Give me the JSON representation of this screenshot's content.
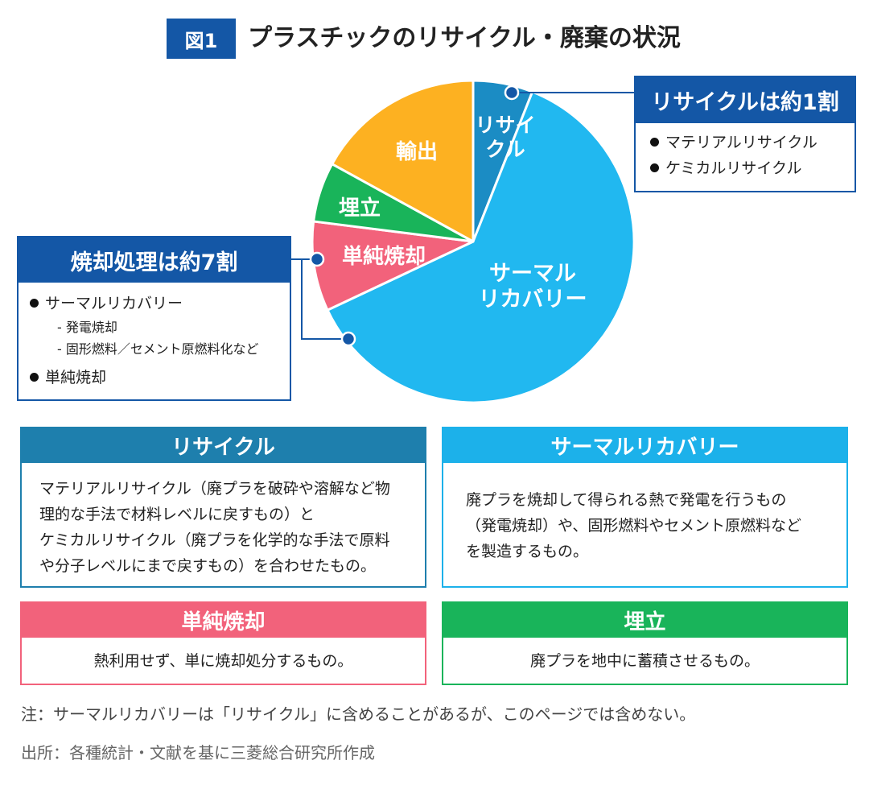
{
  "figure_label": "図1",
  "title": "プラスチックのリサイクル・廃棄の状況",
  "chart_data": {
    "type": "pie",
    "start": "top, clockwise",
    "slices": [
      {
        "label_lines": [
          "リサイ",
          "クル"
        ],
        "value": 6,
        "color": "#1b8cc4",
        "label_color": "#ffffff"
      },
      {
        "label_lines": [
          "サーマル",
          "リカバリー"
        ],
        "value": 62,
        "color": "#21b8f0",
        "label_color": "#ffffff"
      },
      {
        "label_lines": [
          "単純焼却"
        ],
        "value": 9,
        "color": "#f2627b",
        "label_color": "#ffffff"
      },
      {
        "label_lines": [
          "埋立"
        ],
        "value": 6,
        "color": "#19b45a",
        "label_color": "#ffffff"
      },
      {
        "label_lines": [
          "輸出"
        ],
        "value": 17,
        "color": "#fdb121",
        "label_color": "#ffffff"
      }
    ],
    "note": "values estimated from slice angles"
  },
  "callouts": {
    "recycle": {
      "title": "リサイクルは約1割",
      "items": [
        "マテリアルリサイクル",
        "ケミカルリサイクル"
      ]
    },
    "incineration": {
      "title": "焼却処理は約7割",
      "item1": "サーマルリカバリー",
      "sub1": "-  発電焼却",
      "sub2": "-  固形燃料／セメント原燃料化など",
      "item2": "単純焼却"
    }
  },
  "definitions": {
    "recycle": {
      "title": "リサイクル",
      "lines": [
        "マテリアルリサイクル（廃プラを破砕や溶解など物",
        "理的な手法で材料レベルに戻すもの）と",
        "ケミカルリサイクル（廃プラを化学的な手法で原料",
        "や分子レベルにまで戻すもの）を合わせたもの。"
      ]
    },
    "thermal": {
      "title": "サーマルリカバリー",
      "lines": [
        "廃プラを焼却して得られる熱で発電を行うもの",
        "（発電焼却）や、固形燃料やセメント原燃料など",
        "を製造するもの。"
      ]
    },
    "simple": {
      "title": "単純焼却",
      "text": "熱利用せず、単に焼却処分するもの。"
    },
    "landfill": {
      "title": "埋立",
      "text": "廃プラを地中に蓄積させるもの。"
    }
  },
  "note": "注：サーマルリカバリーは「リサイクル」に含めることがあるが、このページでは含めない。",
  "source": "出所：各種統計・文献を基に三菱総合研究所作成",
  "colors": {
    "navy": "#1457a6",
    "recycle": "#1e7fad",
    "thermal": "#1cb1ea",
    "simple": "#f2627b",
    "landfill": "#19b45a"
  }
}
